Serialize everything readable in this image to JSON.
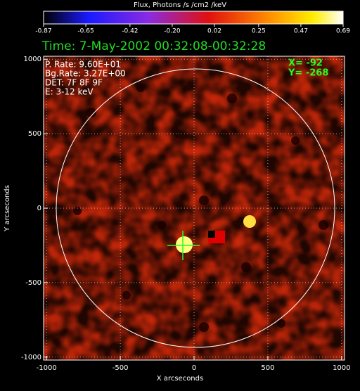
{
  "chart_data": {
    "type": "heatmap",
    "title": "Flux, Photons /s /cm2 /keV",
    "subtitle": "Time:  7-May-2002 00:32:08-00:32:28",
    "x_label": "X arcseconds",
    "y_label": "Y arcseconds",
    "clim": [
      -0.87,
      0.69
    ],
    "cticks": [
      -0.87,
      -0.65,
      -0.42,
      {
        "value": -0.2,
        "label": "-0.20"
      },
      0.02,
      0.25,
      0.47,
      0.69
    ],
    "xlim": [
      -1020,
      1020
    ],
    "xticks": [
      -1000,
      -500,
      0,
      500,
      1000
    ],
    "ylim": [
      -1020,
      1020
    ],
    "yticks": [
      -1000,
      -500,
      0,
      500,
      1000
    ],
    "grid": true,
    "info_lines": [
      "P. Rate:  9.60E+01",
      "Bg.Rate:  3.27E+00",
      "DET: 7F 8F 9F",
      "E: 3-12 keV"
    ],
    "position_lines": [
      "X=  -92",
      "Y=  -268"
    ]
  }
}
